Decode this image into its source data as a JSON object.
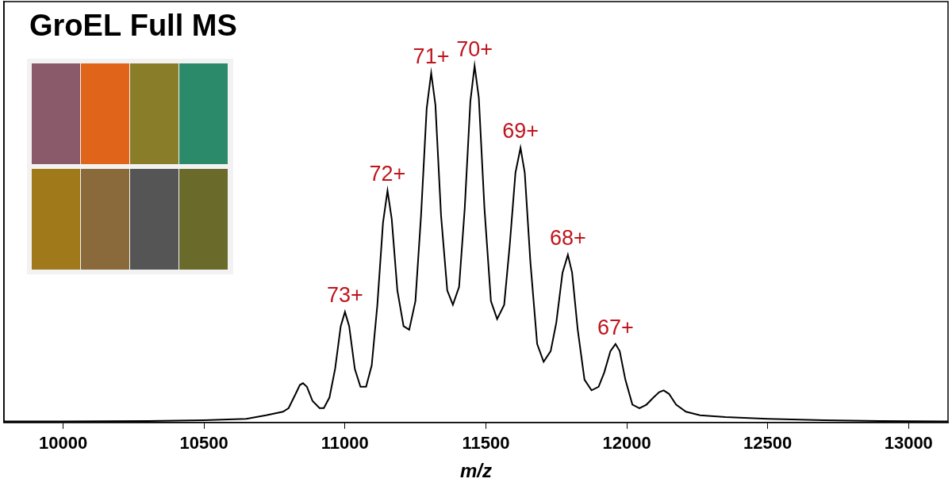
{
  "chart_data": {
    "type": "line",
    "title": "GroEL Full MS",
    "x_label": "m/z",
    "x": [
      9790,
      10000,
      10300,
      10500,
      10650,
      10720,
      10780,
      10800,
      10825,
      10840,
      10851,
      10865,
      10885,
      10910,
      10925,
      10945,
      10965,
      10985,
      11000,
      11015,
      11035,
      11055,
      11075,
      11095,
      11115,
      11135,
      11151,
      11166,
      11186,
      11208,
      11228,
      11250,
      11270,
      11290,
      11306,
      11321,
      11341,
      11363,
      11383,
      11405,
      11425,
      11445,
      11460,
      11475,
      11495,
      11518,
      11540,
      11565,
      11585,
      11605,
      11623,
      11638,
      11658,
      11682,
      11705,
      11730,
      11750,
      11772,
      11791,
      11806,
      11826,
      11850,
      11875,
      11900,
      11920,
      11942,
      11960,
      11975,
      11995,
      12020,
      12045,
      12070,
      12095,
      12115,
      12131,
      12150,
      12175,
      12210,
      12260,
      12350,
      12500,
      12700,
      12900,
      13140
    ],
    "values": [
      0.3,
      0.3,
      0.4,
      0.6,
      1,
      2,
      3,
      4,
      8,
      10.5,
      11,
      10,
      6,
      4,
      4,
      7,
      15,
      27,
      31,
      27,
      15,
      10,
      10,
      16,
      33,
      56,
      65,
      57,
      37,
      27,
      26,
      34,
      58,
      88,
      98,
      89,
      58,
      37,
      33,
      38,
      60,
      90,
      100,
      91,
      60,
      34,
      29,
      33,
      50,
      70,
      77,
      70,
      45,
      22,
      17,
      20,
      28,
      42,
      47,
      42,
      26,
      12,
      9,
      10,
      14,
      20,
      22,
      20,
      12,
      5,
      4,
      5,
      7,
      8.5,
      9,
      8,
      5,
      3,
      2,
      1.5,
      1,
      0.6,
      0.4,
      0.3
    ],
    "color": "#000000",
    "xlim": [
      9790,
      13140
    ],
    "xticks": [
      10000,
      10500,
      11000,
      11500,
      12000,
      12500,
      13000
    ],
    "ylim": [
      0,
      118
    ],
    "tick_labels": "x",
    "grid": false,
    "annotations": [
      {
        "text": "73+",
        "x": 11000,
        "y": 31
      },
      {
        "text": "72+",
        "x": 11151,
        "y": 65
      },
      {
        "text": "71+",
        "x": 11306,
        "y": 98
      },
      {
        "text": "70+",
        "x": 11460,
        "y": 100
      },
      {
        "text": "69+",
        "x": 11623,
        "y": 77
      },
      {
        "text": "68+",
        "x": 11791,
        "y": 47
      },
      {
        "text": "67+",
        "x": 11960,
        "y": 22
      }
    ]
  }
}
